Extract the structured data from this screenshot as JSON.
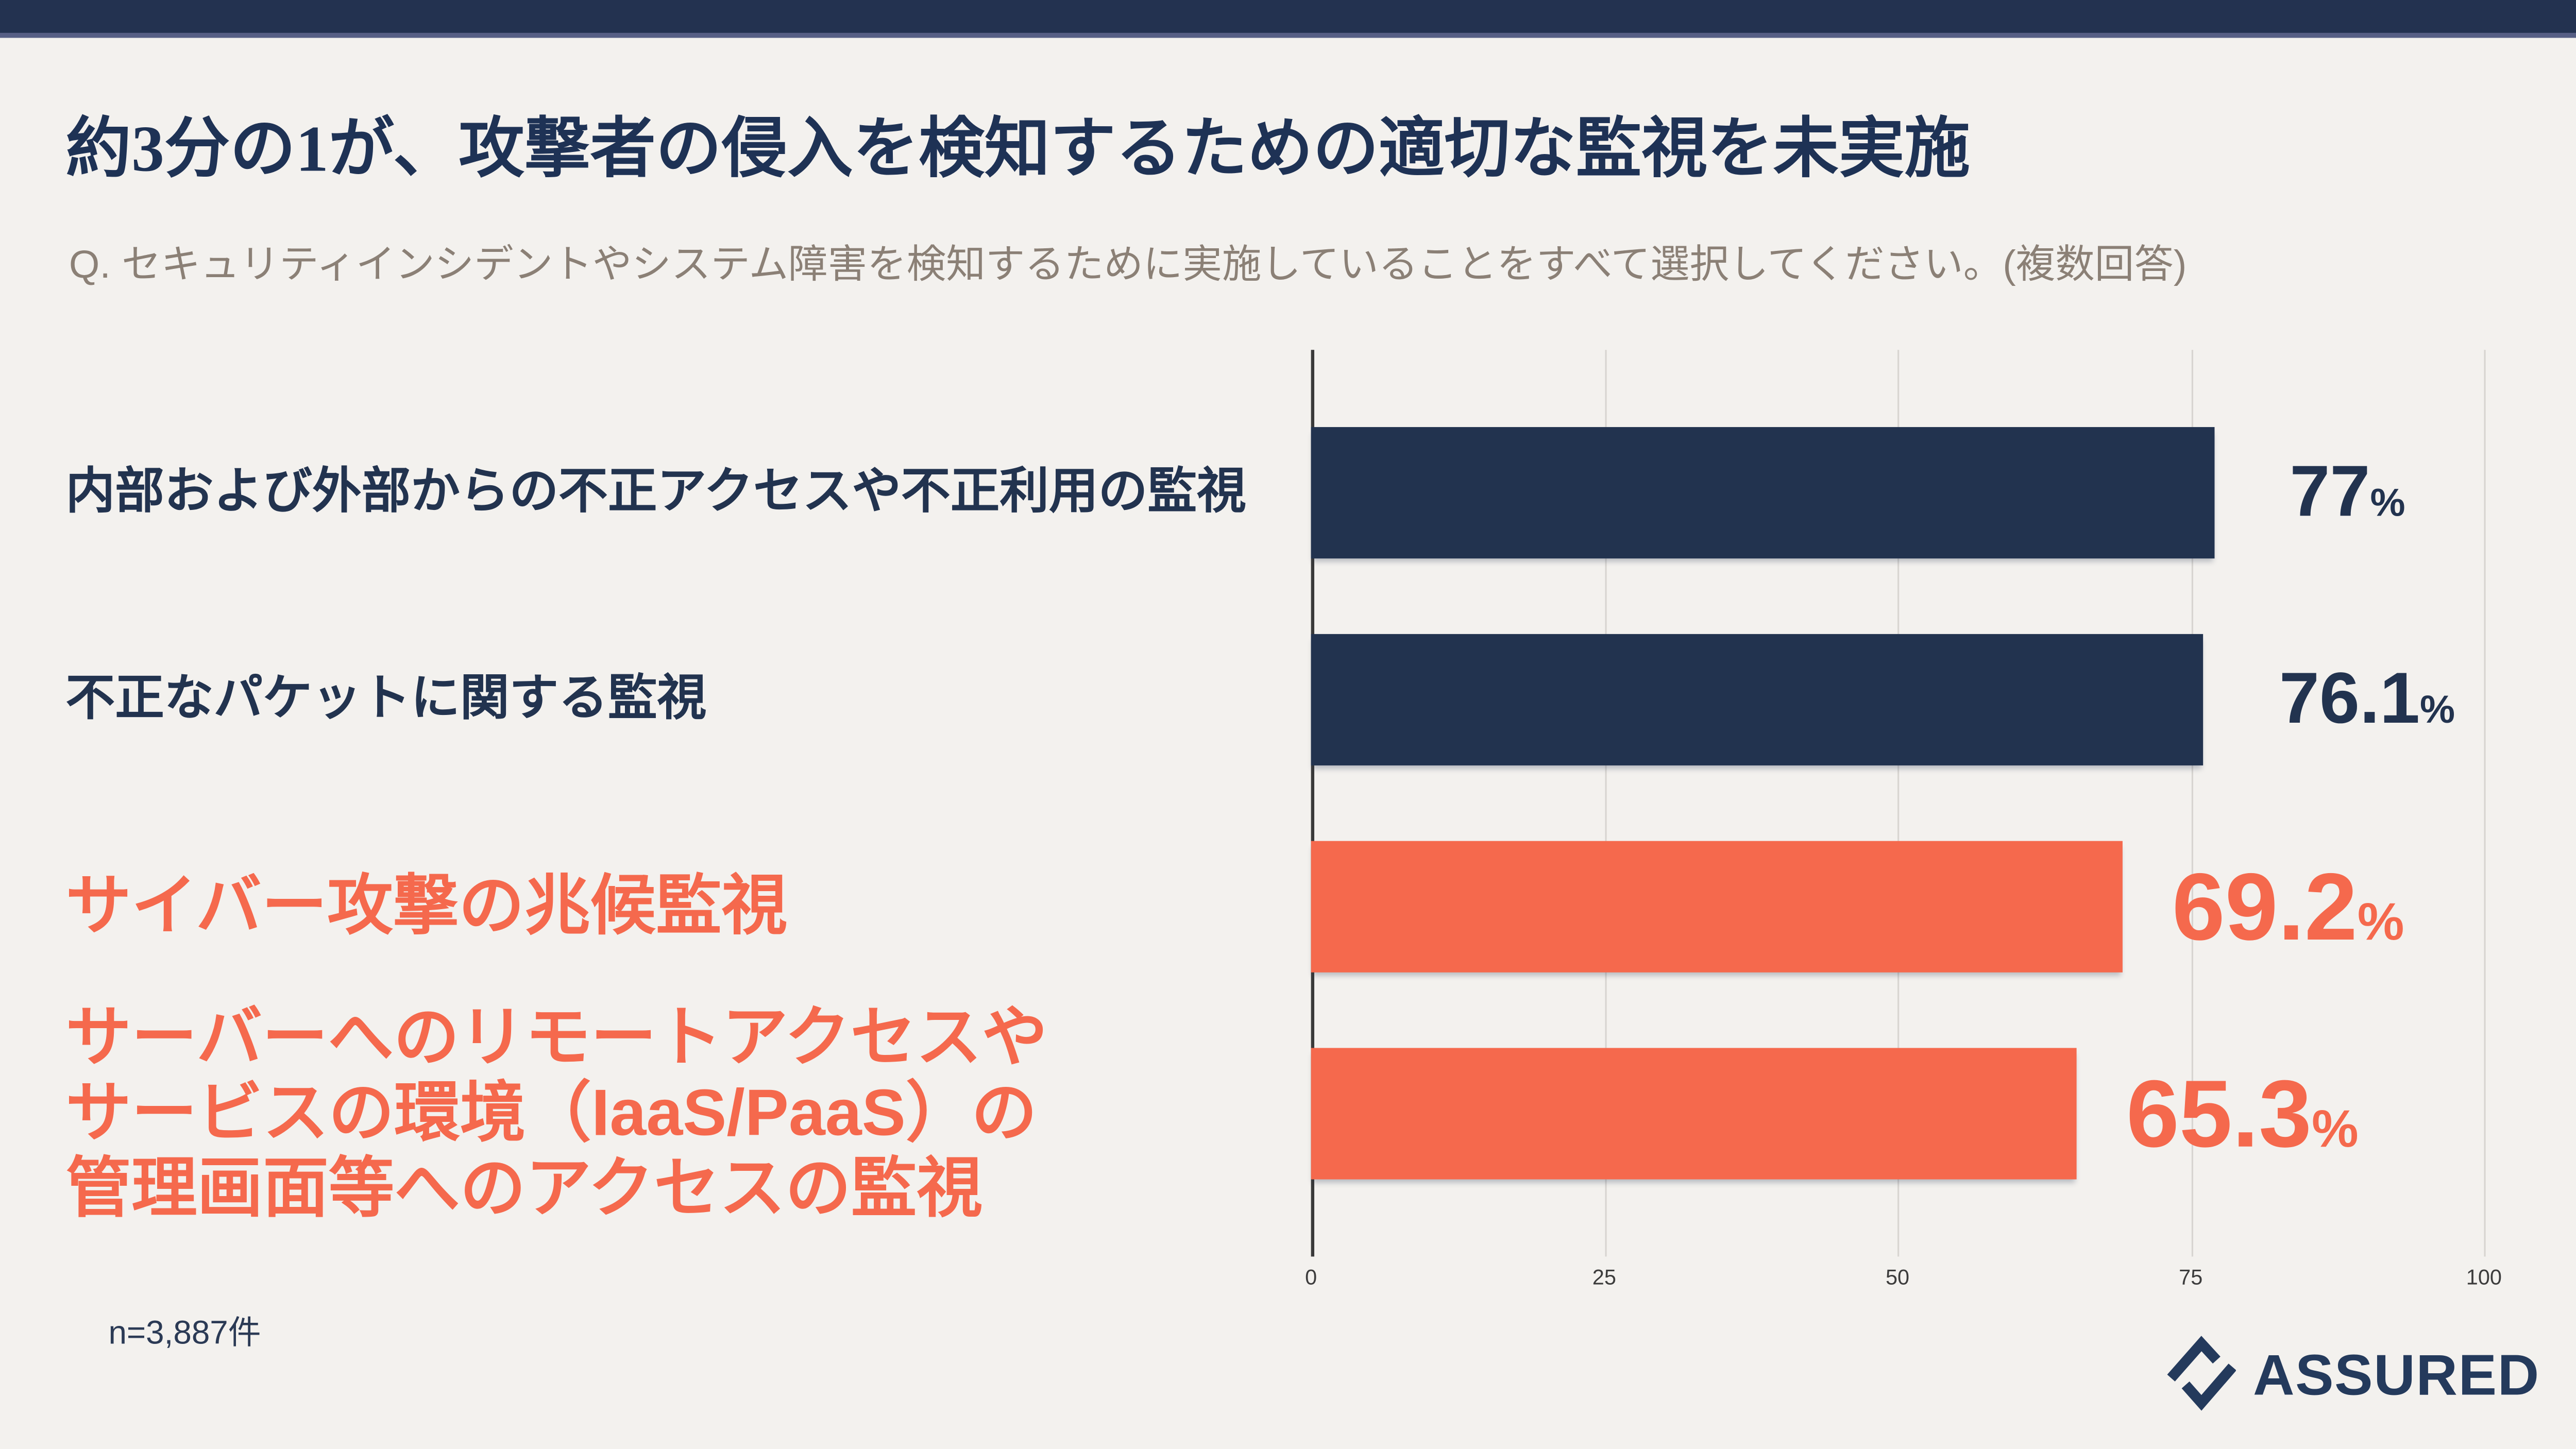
{
  "page": {
    "background_color": "#f3f1ee",
    "topbar_color": "#233250"
  },
  "header": {
    "title": "約3分の1が、攻撃者の侵入を検知するための適切な監視を未実施",
    "subtitle": "Q. セキュリティインシデントやシステム障害を検知するために実施していることをすべて選択してください。(複数回答)"
  },
  "chart_data": {
    "type": "bar",
    "orientation": "horizontal",
    "categories": [
      "内部および外部からの不正アクセスや不正利用の監視",
      "不正なパケットに関する監視",
      "サイバー攻撃の兆候監視",
      "サーバーへのリモートアクセスや\nサービスの環境（IaaS/PaaS）の\n管理画面等へのアクセスの監視"
    ],
    "values": [
      77,
      76.1,
      69.2,
      65.3
    ],
    "value_labels": [
      "77",
      "76.1",
      "69.2",
      "65.3"
    ],
    "unit": "%",
    "bar_colors": [
      "#22334f",
      "#22334f",
      "#f5694d",
      "#f5694d"
    ],
    "emphasized": [
      false,
      false,
      true,
      true
    ],
    "xlim": [
      0,
      100
    ],
    "x_ticks": [
      "0",
      "25",
      "50",
      "75",
      "100"
    ],
    "grid": true,
    "legend": null
  },
  "footer": {
    "sample_note": "n=3,887件",
    "logo_text": "ASSURED"
  },
  "colors": {
    "navy": "#22334f",
    "coral": "#f5694d",
    "title_navy": "#1e3255",
    "subtitle_gray": "#8b8076",
    "gridline": "#d8d5d1",
    "axis_line": "#3a3a3a",
    "tick_text": "#3c3c3c",
    "logo_navy": "#243a5c"
  }
}
